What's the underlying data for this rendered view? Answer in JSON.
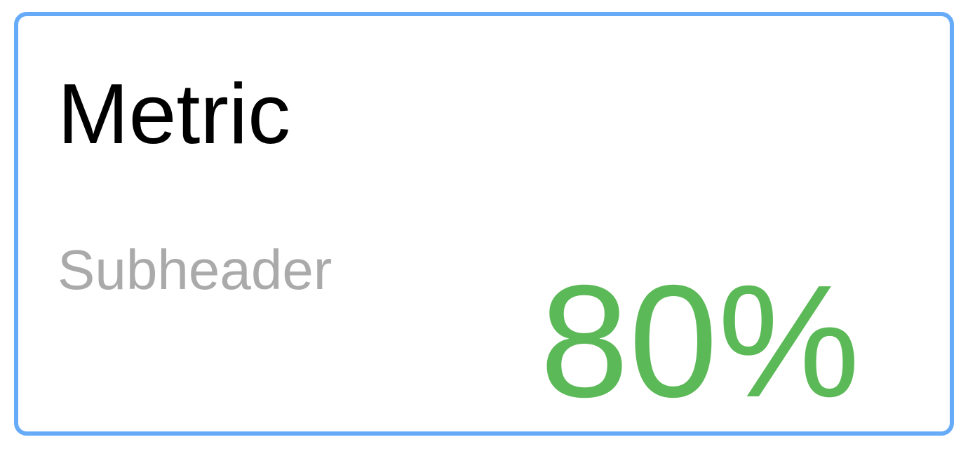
{
  "metric_card": {
    "title": "Metric",
    "subheader": "Subheader",
    "value": "80%"
  },
  "colors": {
    "border": "#66abf8",
    "title": "#000000",
    "subheader": "#aaaaaa",
    "value": "#5cb958"
  }
}
